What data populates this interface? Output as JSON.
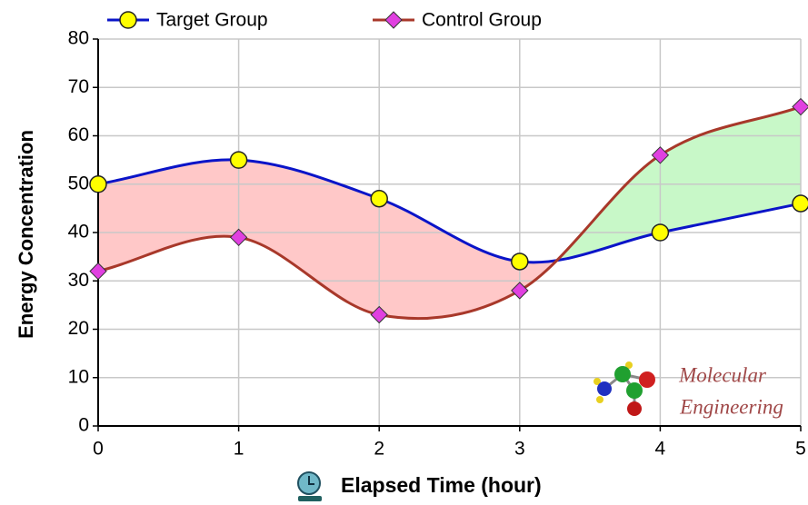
{
  "chart_data": {
    "type": "line",
    "x": [
      0,
      1,
      2,
      3,
      4,
      5
    ],
    "series": [
      {
        "name": "Target Group",
        "color": "#0a14c8",
        "marker": "circle",
        "marker_color": "#ffff00",
        "values": [
          50,
          55,
          47,
          34,
          40,
          46
        ]
      },
      {
        "name": "Control Group",
        "color": "#a8382a",
        "marker": "diamond",
        "marker_color": "#e040e0",
        "values": [
          32,
          39,
          23,
          28,
          56,
          66
        ]
      }
    ],
    "fill_between": {
      "above_color": "#ffc8c8",
      "below_color": "#c8f8c8"
    },
    "xlabel": "Elapsed Time (hour)",
    "ylabel": "Energy Concentration",
    "xlim": [
      0,
      5
    ],
    "xticks": [
      0,
      1,
      2,
      3,
      4,
      5
    ],
    "ylim": [
      0,
      80
    ],
    "yticks": [
      0,
      10,
      20,
      30,
      40,
      50,
      60,
      70,
      80
    ],
    "grid": true,
    "legend": "top",
    "annotations": [
      "Molecular",
      "Engineering"
    ]
  }
}
